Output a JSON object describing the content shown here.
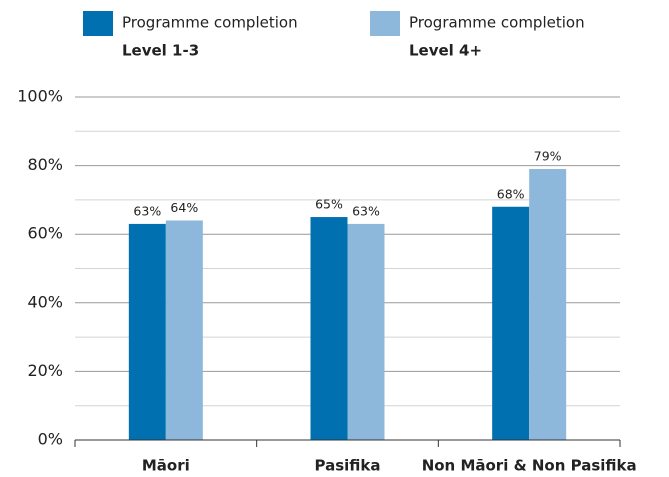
{
  "chart_data": {
    "type": "bar",
    "categories": [
      "Māori",
      "Pasifika",
      "Non Māori & Non Pasifika"
    ],
    "series": [
      {
        "group": "Programme completion",
        "name": "Level 1-3",
        "color": "#0070b0",
        "values": [
          63,
          65,
          68
        ],
        "value_labels": [
          "63%",
          "65%",
          "68%"
        ]
      },
      {
        "group": "Programme completion",
        "name": "Level 4+",
        "color": "#8db8dc",
        "values": [
          64,
          63,
          79
        ],
        "value_labels": [
          "64%",
          "63%",
          "79%"
        ]
      }
    ],
    "ylim": [
      0,
      100
    ],
    "yticks": [
      {
        "value": 0,
        "label": "0%"
      },
      {
        "value": 20,
        "label": "20%"
      },
      {
        "value": 40,
        "label": "40%"
      },
      {
        "value": 60,
        "label": "60%"
      },
      {
        "value": 80,
        "label": "80%"
      },
      {
        "value": 100,
        "label": "100%"
      }
    ],
    "minor_yticks": [
      10,
      30,
      50,
      70,
      90
    ],
    "grid": true,
    "legend": "top"
  }
}
